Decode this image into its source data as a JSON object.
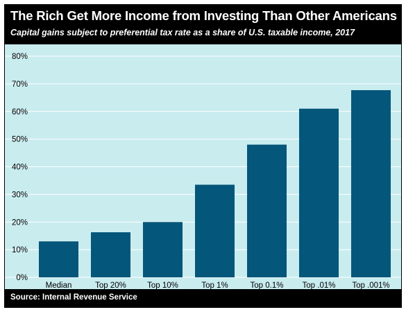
{
  "header": {
    "title": "The Rich Get More Income from Investing Than Other Americans",
    "subtitle": "Capital gains subject to preferential tax rate as a share of U.S. taxable income, 2017"
  },
  "footer": {
    "source": "Source: Internal Revenue Service"
  },
  "colors": {
    "bar": "#04567a",
    "plot_background": "#c9ecef",
    "grid": "#ffffff",
    "header_background": "#000000"
  },
  "chart_data": {
    "type": "bar",
    "title": "The Rich Get More Income from Investing Than Other Americans",
    "subtitle": "Capital gains subject to preferential tax rate as a share of U.S. taxable income, 2017",
    "categories": [
      "Median",
      "Top 20%",
      "Top 10%",
      "Top 1%",
      "Top 0.1%",
      "Top .01%",
      "Top .001%"
    ],
    "values": [
      13,
      16.3,
      20,
      33.5,
      48,
      61,
      67.7
    ],
    "value_unit": "%",
    "ylim": [
      0,
      80
    ],
    "yticks": [
      0,
      10,
      20,
      30,
      40,
      50,
      60,
      70,
      80
    ],
    "ytick_labels": [
      "0%",
      "10%",
      "20%",
      "30%",
      "40%",
      "50%",
      "60%",
      "70%",
      "80%"
    ],
    "xlabel": "",
    "ylabel": "",
    "grid": true,
    "legend": "none"
  }
}
